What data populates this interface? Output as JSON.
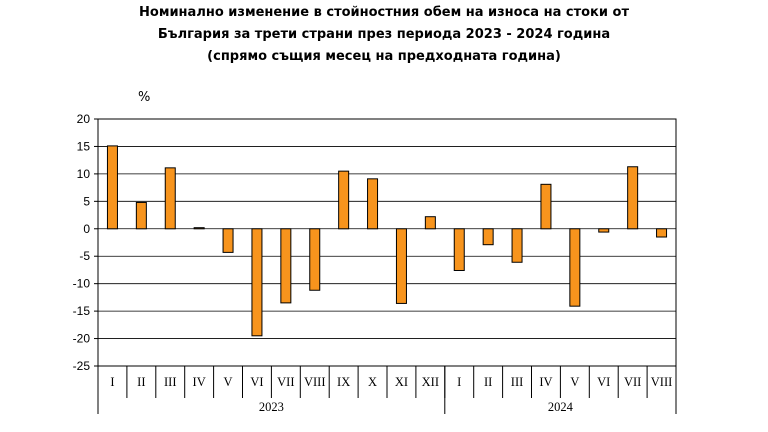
{
  "chart_data": {
    "type": "bar",
    "title_lines": [
      "Номинално изменение в стойностния обем на износа на стоки от",
      "България за трети страни през периода 2023 - 2024 година",
      "(спрямо същия месец на предходната година)"
    ],
    "ylabel": "%",
    "ylim": [
      -25,
      20
    ],
    "yticks": [
      20,
      15,
      10,
      5,
      0,
      -5,
      -10,
      -15,
      -20,
      -25
    ],
    "grid": true,
    "bar_color": "#f7941d",
    "categories": [
      "I",
      "II",
      "III",
      "IV",
      "V",
      "VI",
      "VII",
      "VIII",
      "IX",
      "X",
      "XI",
      "XII",
      "I",
      "II",
      "III",
      "IV",
      "V",
      "VI",
      "VII",
      "VIII"
    ],
    "groups": [
      {
        "label": "2023",
        "count": 12
      },
      {
        "label": "2024",
        "count": 8
      }
    ],
    "values": [
      15.1,
      4.8,
      11.1,
      0.2,
      -4.3,
      -19.5,
      -13.5,
      -11.2,
      10.5,
      9.1,
      -13.6,
      2.2,
      -7.6,
      -2.9,
      -6.1,
      8.1,
      -14.1,
      -0.6,
      11.3,
      -1.5
    ]
  }
}
